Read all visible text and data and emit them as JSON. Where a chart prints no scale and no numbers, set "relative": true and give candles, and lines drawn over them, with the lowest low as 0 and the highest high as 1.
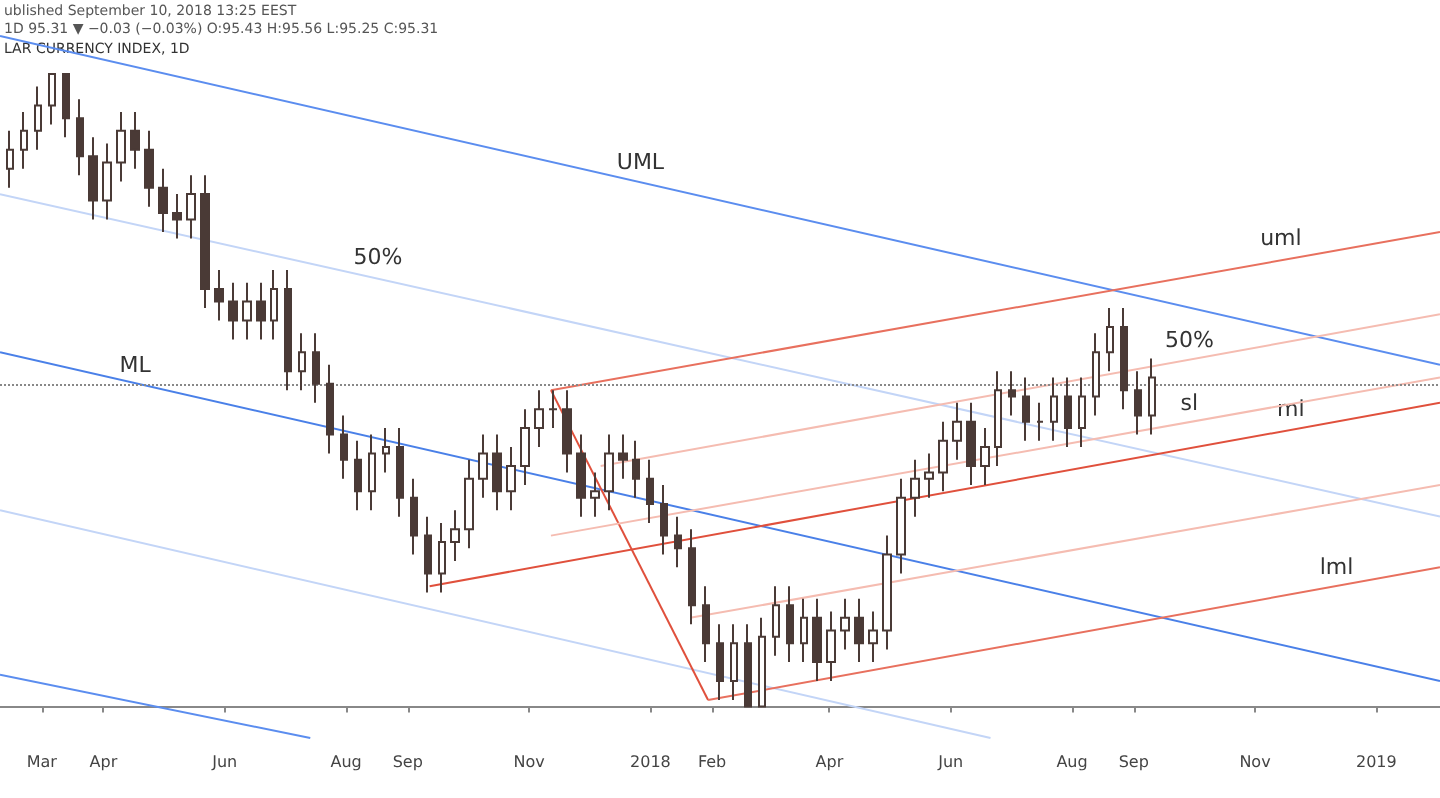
{
  "chart_data": {
    "type": "candlestick",
    "title": "LAR CURRENCY INDEX, 1D",
    "relative": true,
    "color": "#4a3a36",
    "annotations": [
      "ublished September 10, 2018 13:25 EEST",
      "1D 95.31 ▼ −0.03 (−0.03%) O:95.43 H:95.56 L:95.25 C:95.31",
      {
        "text": "UML",
        "x": "2017-12-27",
        "y": 0.83
      },
      {
        "text": "50%",
        "x": "2017-08-17",
        "y": 0.68
      },
      {
        "text": "ML",
        "x": "2017-04-17",
        "y": 0.51
      },
      {
        "text": "uml",
        "x": "2018-11-14",
        "y": 0.71
      },
      {
        "text": "50%",
        "x": "2018-09-29",
        "y": 0.55
      },
      {
        "text": "sl",
        "x": "2018-09-29",
        "y": 0.45
      },
      {
        "text": "ml",
        "x": "2018-11-19",
        "y": 0.44
      },
      {
        "text": "lml",
        "x": "2018-12-12",
        "y": 0.19
      }
    ],
    "x": [
      "2017-02-13",
      "2017-02-20",
      "2017-02-27",
      "2017-03-06",
      "2017-03-13",
      "2017-03-20",
      "2017-03-27",
      "2017-04-03",
      "2017-04-10",
      "2017-04-17",
      "2017-04-24",
      "2017-05-01",
      "2017-05-08",
      "2017-05-15",
      "2017-05-22",
      "2017-05-29",
      "2017-06-05",
      "2017-06-12",
      "2017-06-19",
      "2017-06-26",
      "2017-07-03",
      "2017-07-10",
      "2017-07-17",
      "2017-07-24",
      "2017-07-31",
      "2017-08-07",
      "2017-08-14",
      "2017-08-21",
      "2017-08-28",
      "2017-09-04",
      "2017-09-11",
      "2017-09-18",
      "2017-09-25",
      "2017-10-02",
      "2017-10-09",
      "2017-10-16",
      "2017-10-23",
      "2017-10-30",
      "2017-11-06",
      "2017-11-13",
      "2017-11-20",
      "2017-11-27",
      "2017-12-04",
      "2017-12-11",
      "2017-12-18",
      "2017-12-25",
      "2018-01-01",
      "2018-01-08",
      "2018-01-15",
      "2018-01-22",
      "2018-01-29",
      "2018-02-05",
      "2018-02-12",
      "2018-02-19",
      "2018-02-26",
      "2018-03-05",
      "2018-03-12",
      "2018-03-19",
      "2018-03-26",
      "2018-04-02",
      "2018-04-09",
      "2018-04-16",
      "2018-04-23",
      "2018-04-30",
      "2018-05-07",
      "2018-05-14",
      "2018-05-21",
      "2018-05-28",
      "2018-06-04",
      "2018-06-11",
      "2018-06-18",
      "2018-06-25",
      "2018-07-02",
      "2018-07-09",
      "2018-07-16",
      "2018-07-23",
      "2018-07-30",
      "2018-08-06",
      "2018-08-13",
      "2018-08-20",
      "2018-08-27",
      "2018-09-03",
      "2018-09-10"
    ],
    "ohlc": [
      [
        0.85,
        0.91,
        0.82,
        0.88
      ],
      [
        0.88,
        0.94,
        0.85,
        0.91
      ],
      [
        0.91,
        0.98,
        0.88,
        0.95
      ],
      [
        0.95,
        1.0,
        0.92,
        1.0
      ],
      [
        1.0,
        1.0,
        0.9,
        0.93
      ],
      [
        0.93,
        0.96,
        0.84,
        0.87
      ],
      [
        0.87,
        0.9,
        0.77,
        0.8
      ],
      [
        0.8,
        0.89,
        0.77,
        0.86
      ],
      [
        0.86,
        0.94,
        0.83,
        0.91
      ],
      [
        0.91,
        0.94,
        0.85,
        0.88
      ],
      [
        0.88,
        0.91,
        0.79,
        0.82
      ],
      [
        0.82,
        0.85,
        0.75,
        0.78
      ],
      [
        0.78,
        0.81,
        0.74,
        0.77
      ],
      [
        0.77,
        0.84,
        0.74,
        0.81
      ],
      [
        0.81,
        0.84,
        0.63,
        0.66
      ],
      [
        0.66,
        0.69,
        0.61,
        0.64
      ],
      [
        0.64,
        0.67,
        0.58,
        0.61
      ],
      [
        0.61,
        0.67,
        0.58,
        0.64
      ],
      [
        0.64,
        0.67,
        0.58,
        0.61
      ],
      [
        0.61,
        0.69,
        0.58,
        0.66
      ],
      [
        0.66,
        0.69,
        0.5,
        0.53
      ],
      [
        0.53,
        0.59,
        0.5,
        0.56
      ],
      [
        0.56,
        0.59,
        0.48,
        0.51
      ],
      [
        0.51,
        0.54,
        0.4,
        0.43
      ],
      [
        0.43,
        0.46,
        0.36,
        0.39
      ],
      [
        0.39,
        0.42,
        0.31,
        0.34
      ],
      [
        0.34,
        0.43,
        0.31,
        0.4
      ],
      [
        0.4,
        0.44,
        0.37,
        0.41
      ],
      [
        0.41,
        0.44,
        0.3,
        0.33
      ],
      [
        0.33,
        0.36,
        0.24,
        0.27
      ],
      [
        0.27,
        0.3,
        0.18,
        0.21
      ],
      [
        0.21,
        0.29,
        0.18,
        0.26
      ],
      [
        0.26,
        0.31,
        0.23,
        0.28
      ],
      [
        0.28,
        0.39,
        0.25,
        0.36
      ],
      [
        0.36,
        0.43,
        0.33,
        0.4
      ],
      [
        0.4,
        0.43,
        0.31,
        0.34
      ],
      [
        0.34,
        0.41,
        0.31,
        0.38
      ],
      [
        0.38,
        0.47,
        0.35,
        0.44
      ],
      [
        0.44,
        0.5,
        0.41,
        0.47
      ],
      [
        0.47,
        0.5,
        0.44,
        0.47
      ],
      [
        0.47,
        0.5,
        0.37,
        0.4
      ],
      [
        0.4,
        0.43,
        0.3,
        0.33
      ],
      [
        0.33,
        0.37,
        0.3,
        0.34
      ],
      [
        0.34,
        0.43,
        0.31,
        0.4
      ],
      [
        0.4,
        0.43,
        0.36,
        0.39
      ],
      [
        0.39,
        0.42,
        0.33,
        0.36
      ],
      [
        0.36,
        0.39,
        0.29,
        0.32
      ],
      [
        0.32,
        0.35,
        0.24,
        0.27
      ],
      [
        0.27,
        0.3,
        0.22,
        0.25
      ],
      [
        0.25,
        0.28,
        0.13,
        0.16
      ],
      [
        0.16,
        0.19,
        0.07,
        0.1
      ],
      [
        0.1,
        0.13,
        0.01,
        0.04
      ],
      [
        0.04,
        0.13,
        0.01,
        0.1
      ],
      [
        0.1,
        0.13,
        0.0,
        0.0
      ],
      [
        0.0,
        0.14,
        0.0,
        0.11
      ],
      [
        0.11,
        0.19,
        0.08,
        0.16
      ],
      [
        0.16,
        0.19,
        0.07,
        0.1
      ],
      [
        0.1,
        0.17,
        0.07,
        0.14
      ],
      [
        0.14,
        0.17,
        0.04,
        0.07
      ],
      [
        0.07,
        0.15,
        0.04,
        0.12
      ],
      [
        0.12,
        0.17,
        0.09,
        0.14
      ],
      [
        0.14,
        0.17,
        0.07,
        0.1
      ],
      [
        0.1,
        0.15,
        0.07,
        0.12
      ],
      [
        0.12,
        0.27,
        0.09,
        0.24
      ],
      [
        0.24,
        0.36,
        0.21,
        0.33
      ],
      [
        0.33,
        0.39,
        0.3,
        0.36
      ],
      [
        0.36,
        0.4,
        0.33,
        0.37
      ],
      [
        0.37,
        0.45,
        0.34,
        0.42
      ],
      [
        0.42,
        0.48,
        0.39,
        0.45
      ],
      [
        0.45,
        0.48,
        0.35,
        0.38
      ],
      [
        0.38,
        0.44,
        0.35,
        0.41
      ],
      [
        0.41,
        0.53,
        0.38,
        0.5
      ],
      [
        0.5,
        0.53,
        0.46,
        0.49
      ],
      [
        0.49,
        0.52,
        0.42,
        0.45
      ],
      [
        0.45,
        0.48,
        0.42,
        0.45
      ],
      [
        0.45,
        0.52,
        0.42,
        0.49
      ],
      [
        0.49,
        0.52,
        0.41,
        0.44
      ],
      [
        0.44,
        0.52,
        0.41,
        0.49
      ],
      [
        0.49,
        0.59,
        0.46,
        0.56
      ],
      [
        0.56,
        0.63,
        0.53,
        0.6
      ],
      [
        0.6,
        0.63,
        0.47,
        0.5
      ],
      [
        0.5,
        0.53,
        0.43,
        0.46
      ],
      [
        0.46,
        0.55,
        0.43,
        0.52
      ]
    ],
    "series": [
      {
        "type": "line",
        "color": "#5b8def",
        "x": [
          "2017-02-08",
          "2019-02-02"
        ],
        "values": [
          1.06,
          0.54
        ]
      },
      {
        "type": "line",
        "color": "#c3d5f7",
        "x": [
          "2017-02-08",
          "2019-02-02"
        ],
        "values": [
          0.81,
          0.3
        ]
      },
      {
        "type": "line",
        "color": "#4a80e8",
        "x": [
          "2017-02-08",
          "2019-02-02"
        ],
        "values": [
          0.56,
          0.04
        ]
      },
      {
        "type": "line",
        "color": "#c3d5f7",
        "x": [
          "2017-02-08",
          "2018-06-21"
        ],
        "values": [
          0.31,
          -0.05
        ]
      },
      {
        "type": "line",
        "color": "#5b8def",
        "x": [
          "2017-02-08",
          "2017-07-14"
        ],
        "values": [
          0.05,
          -0.05
        ]
      },
      {
        "type": "line",
        "color": "#e0503c",
        "x": [
          "2017-09-12",
          "2019-02-02"
        ],
        "values": [
          0.19,
          0.48
        ]
      },
      {
        "type": "line",
        "color": "#e8705e",
        "x": [
          "2017-11-12",
          "2019-02-02"
        ],
        "values": [
          0.5,
          0.75
        ]
      },
      {
        "type": "line",
        "color": "#e0503c",
        "x": [
          "2017-11-12",
          "2018-01-30"
        ],
        "values": [
          0.5,
          0.01
        ]
      },
      {
        "type": "line",
        "color": "#e8705e",
        "x": [
          "2018-01-30",
          "2019-02-02"
        ],
        "values": [
          0.01,
          0.22
        ]
      },
      {
        "type": "line",
        "color": "#f5bcb1",
        "x": [
          "2017-12-07",
          "2019-02-02"
        ],
        "values": [
          0.38,
          0.62
        ]
      },
      {
        "type": "line",
        "color": "#f5bcb1",
        "x": [
          "2017-11-12",
          "2019-02-02"
        ],
        "values": [
          0.27,
          0.52
        ]
      },
      {
        "type": "line",
        "color": "#f5bcb1",
        "x": [
          "2018-01-21",
          "2019-02-02"
        ],
        "values": [
          0.14,
          0.35
        ]
      }
    ],
    "ref_lines": [
      {
        "axis": "y",
        "value": 0.51,
        "color": "#888888",
        "line_style": "dotted"
      }
    ],
    "xlim": [
      "2017-02-08",
      "2019-02-02"
    ],
    "xticks": [
      {
        "value": "2017-03-01",
        "label": "Mar"
      },
      {
        "value": "2017-04-01",
        "label": "Apr"
      },
      {
        "value": "2017-06-01",
        "label": "Jun"
      },
      {
        "value": "2017-08-01",
        "label": "Aug"
      },
      {
        "value": "2017-09-01",
        "label": "Sep"
      },
      {
        "value": "2017-11-01",
        "label": "Nov"
      },
      {
        "value": "2018-01-01",
        "label": "2018"
      },
      {
        "value": "2018-02-01",
        "label": "Feb"
      },
      {
        "value": "2018-04-01",
        "label": "Apr"
      },
      {
        "value": "2018-06-01",
        "label": "Jun"
      },
      {
        "value": "2018-08-01",
        "label": "Aug"
      },
      {
        "value": "2018-09-01",
        "label": "Sep"
      },
      {
        "value": "2018-11-01",
        "label": "Nov"
      },
      {
        "value": "2019-01-01",
        "label": "2019"
      }
    ],
    "tick_labels": "x",
    "marker": "none",
    "line_style": "solid",
    "grid": false
  }
}
